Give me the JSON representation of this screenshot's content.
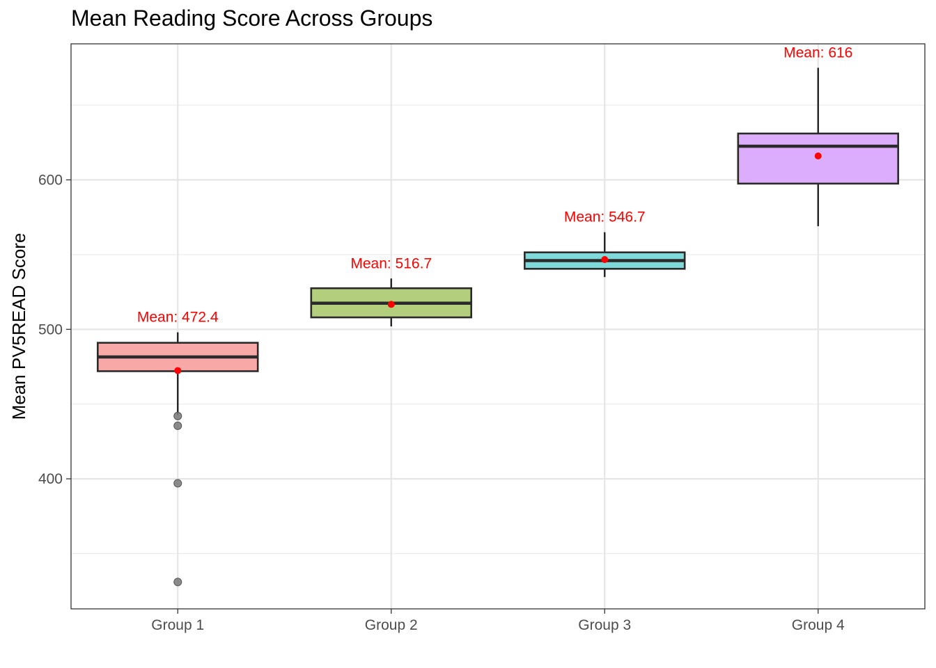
{
  "chart_data": {
    "type": "boxplot",
    "title": "Mean Reading Score Across Groups",
    "xlabel": "",
    "ylabel": "Mean PV5READ Score",
    "ylim": [
      313,
      691
    ],
    "y_ticks": [
      400,
      500,
      600
    ],
    "y_minor_ticks": [
      350,
      450,
      550,
      650
    ],
    "grid": true,
    "categories": [
      "Group 1",
      "Group 2",
      "Group 3",
      "Group 4"
    ],
    "colors": [
      "#f8a9a7",
      "#b3cf7e",
      "#80d9d9",
      "#dcadfc"
    ],
    "mean_color": "#ff0000",
    "outlier_color": "#777777",
    "boxes": [
      {
        "category": "Group 1",
        "whisker_low": 443,
        "q1": 472,
        "median": 481.5,
        "q3": 491,
        "whisker_high": 498,
        "mean": 472.4,
        "mean_label": "Mean: 472.4",
        "outliers": [
          442,
          435.5,
          397,
          331
        ]
      },
      {
        "category": "Group 2",
        "whisker_low": 502,
        "q1": 508,
        "median": 517.5,
        "q3": 527.5,
        "whisker_high": 534,
        "mean": 516.7,
        "mean_label": "Mean: 516.7",
        "outliers": []
      },
      {
        "category": "Group 3",
        "whisker_low": 535,
        "q1": 540.5,
        "median": 546,
        "q3": 551.5,
        "whisker_high": 565,
        "mean": 546.7,
        "mean_label": "Mean: 546.7",
        "outliers": []
      },
      {
        "category": "Group 4",
        "whisker_low": 569,
        "q1": 597.5,
        "median": 622.5,
        "q3": 631,
        "whisker_high": 675,
        "mean": 616,
        "mean_label": "Mean: 616",
        "outliers": []
      }
    ]
  }
}
